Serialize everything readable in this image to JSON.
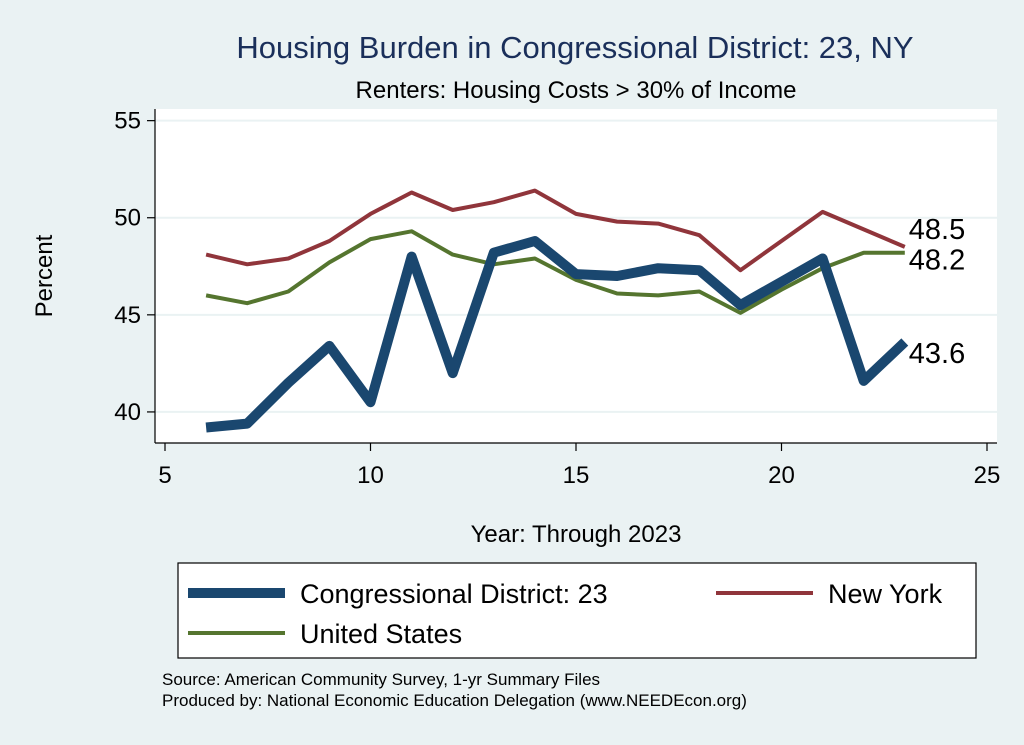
{
  "chart_data": {
    "type": "line",
    "title": "Housing Burden in Congressional District:  23, NY",
    "subtitle": "Renters: Housing Costs > 30% of Income",
    "xlabel": "Year: Through 2023",
    "ylabel": "Percent",
    "xlim": [
      5,
      25
    ],
    "ylim": [
      38.4,
      55.6
    ],
    "xticks": [
      "5",
      "10",
      "15",
      "20",
      "25"
    ],
    "yticks": [
      "40",
      "45",
      "50",
      "55"
    ],
    "grid": true,
    "legend_position": "bottom",
    "x": [
      6,
      7,
      8,
      9,
      10,
      11,
      12,
      13,
      14,
      15,
      16,
      17,
      18,
      19,
      20,
      21,
      22,
      23
    ],
    "series": [
      {
        "name": "Congressional District:  23",
        "color": "#1a476f",
        "values": [
          39.2,
          39.4,
          41.5,
          43.4,
          40.5,
          48.0,
          42.0,
          48.2,
          48.8,
          47.1,
          47.0,
          47.4,
          47.3,
          45.5,
          46.7,
          47.9,
          41.6,
          43.6
        ],
        "end_label": "43.6"
      },
      {
        "name": "New York",
        "color": "#90353b",
        "values": [
          48.1,
          47.6,
          47.9,
          48.8,
          50.2,
          51.3,
          50.4,
          50.8,
          51.4,
          50.2,
          49.8,
          49.7,
          49.1,
          47.3,
          48.8,
          50.3,
          49.4,
          48.5
        ],
        "end_label": "48.5"
      },
      {
        "name": "United States",
        "color": "#55752f",
        "values": [
          46.0,
          45.6,
          46.2,
          47.7,
          48.9,
          49.3,
          48.1,
          47.6,
          47.9,
          46.8,
          46.1,
          46.0,
          46.2,
          45.1,
          46.3,
          47.4,
          48.2,
          48.2
        ],
        "end_label": "48.2"
      }
    ],
    "notes": [
      "Source: American Community Survey, 1-yr Summary Files",
      "Produced by: National Economic Education Delegation (www.NEEDEcon.org)"
    ]
  }
}
